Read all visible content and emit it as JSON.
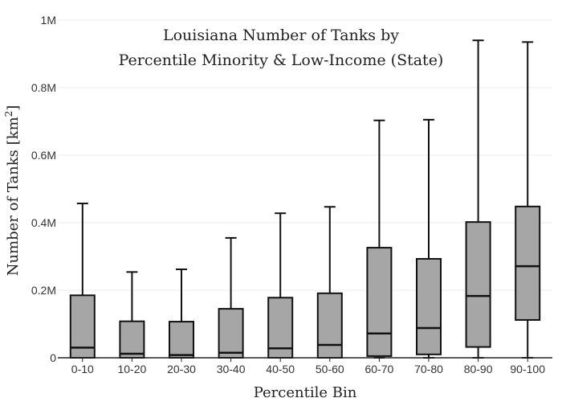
{
  "chart_data": {
    "type": "box",
    "title_line1": "Louisiana Number of Tanks by",
    "title_line2": "Percentile Minority & Low-Income (State)",
    "xlabel": "Percentile Bin",
    "ylabel": "Number of Tanks  [km",
    "ylabel_sup": "2",
    "ylabel_close": "]",
    "ylim": [
      0,
      1000000
    ],
    "yticks": [
      0,
      200000,
      400000,
      600000,
      800000,
      1000000
    ],
    "ytick_labels": [
      "0",
      "0.2M",
      "0.4M",
      "0.6M",
      "0.8M",
      "1M"
    ],
    "grid": true,
    "box_color": "#a6a6a6",
    "categories": [
      "0-10",
      "10-20",
      "20-30",
      "30-40",
      "40-50",
      "50-60",
      "60-70",
      "70-80",
      "80-90",
      "90-100"
    ],
    "boxes": [
      {
        "min": 0,
        "q1": 0,
        "median": 30000,
        "q3": 185000,
        "max": 457000
      },
      {
        "min": 0,
        "q1": 0,
        "median": 12000,
        "q3": 108000,
        "max": 254000
      },
      {
        "min": 0,
        "q1": 0,
        "median": 8000,
        "q3": 107000,
        "max": 262000
      },
      {
        "min": 0,
        "q1": 0,
        "median": 15000,
        "q3": 145000,
        "max": 355000
      },
      {
        "min": 0,
        "q1": 0,
        "median": 28000,
        "q3": 178000,
        "max": 428000
      },
      {
        "min": 0,
        "q1": 0,
        "median": 38000,
        "q3": 191000,
        "max": 447000
      },
      {
        "min": 0,
        "q1": 5000,
        "median": 72000,
        "q3": 326000,
        "max": 703000
      },
      {
        "min": 0,
        "q1": 10000,
        "median": 88000,
        "q3": 293000,
        "max": 705000
      },
      {
        "min": 0,
        "q1": 32000,
        "median": 183000,
        "q3": 402000,
        "max": 940000
      },
      {
        "min": 0,
        "q1": 112000,
        "median": 271000,
        "q3": 448000,
        "max": 935000
      }
    ]
  }
}
